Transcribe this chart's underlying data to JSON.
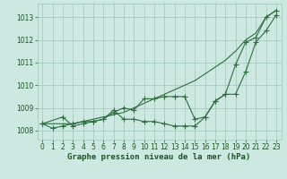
{
  "xlabel": "Graphe pression niveau de la mer (hPa)",
  "background_color": "#cce8e0",
  "plot_bg_color": "#cce8e0",
  "grid_color": "#9dc8b8",
  "line_color": "#2d6e3e",
  "text_color": "#1a5520",
  "ylim": [
    1007.6,
    1013.6
  ],
  "xlim": [
    -0.5,
    23.5
  ],
  "yticks": [
    1008,
    1009,
    1010,
    1011,
    1012,
    1013
  ],
  "xticks": [
    0,
    1,
    2,
    3,
    4,
    5,
    6,
    7,
    8,
    9,
    10,
    11,
    12,
    13,
    14,
    15,
    16,
    17,
    18,
    19,
    20,
    21,
    22,
    23
  ],
  "line1_x": [
    0,
    1,
    2,
    3,
    4,
    5,
    6,
    7,
    8,
    9,
    10,
    11,
    12,
    13,
    14,
    15,
    16,
    17,
    18,
    19,
    20,
    21,
    22,
    23
  ],
  "line1_y": [
    1008.3,
    1008.3,
    1008.3,
    1008.3,
    1008.4,
    1008.5,
    1008.6,
    1008.7,
    1008.8,
    1009.0,
    1009.2,
    1009.4,
    1009.6,
    1009.8,
    1010.0,
    1010.2,
    1010.5,
    1010.8,
    1011.1,
    1011.5,
    1012.0,
    1012.3,
    1013.0,
    1013.3
  ],
  "line2_x": [
    0,
    2,
    3,
    4,
    5,
    6,
    7,
    8,
    9,
    10,
    11,
    12,
    13,
    14,
    15,
    16,
    17,
    18,
    19,
    20,
    21,
    22,
    23
  ],
  "line2_y": [
    1008.3,
    1008.6,
    1008.2,
    1008.3,
    1008.4,
    1008.5,
    1008.8,
    1009.0,
    1008.9,
    1009.4,
    1009.4,
    1009.5,
    1009.5,
    1009.5,
    1008.5,
    1008.6,
    1009.3,
    1009.6,
    1009.6,
    1010.6,
    1011.9,
    1012.4,
    1013.1
  ],
  "line3_x": [
    0,
    1,
    2,
    3,
    4,
    5,
    6,
    7,
    8,
    9,
    10,
    11,
    12,
    13,
    14,
    15,
    16,
    17,
    18,
    19,
    20,
    21,
    22,
    23
  ],
  "line3_y": [
    1008.3,
    1008.1,
    1008.2,
    1008.3,
    1008.4,
    1008.4,
    1008.5,
    1008.9,
    1008.5,
    1008.5,
    1008.4,
    1008.4,
    1008.3,
    1008.2,
    1008.2,
    1008.2,
    1008.6,
    1009.3,
    1009.6,
    1010.9,
    1011.9,
    1012.1,
    1013.0,
    1013.3
  ],
  "marker": "+",
  "marker_size": 4.0,
  "linewidth": 0.8,
  "tick_fontsize": 5.5,
  "label_fontsize": 6.5
}
